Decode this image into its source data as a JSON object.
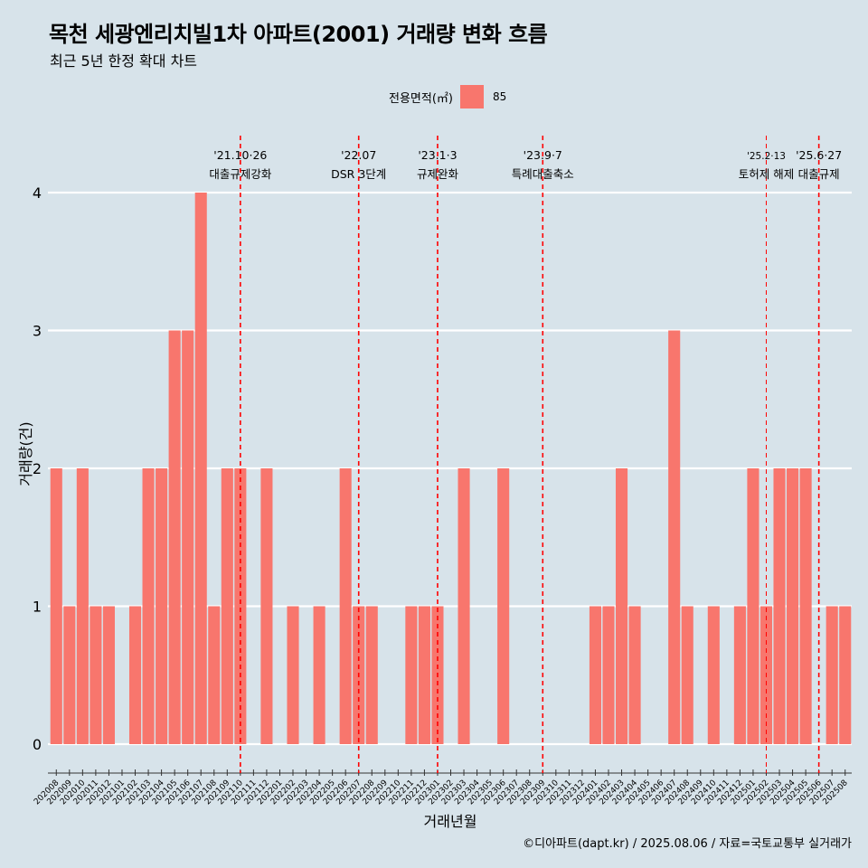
{
  "header": {
    "title": "목천 세광엔리치빌1차 아파트(2001) 거래량 변화 흐름",
    "subtitle": "최근 5년 한정 확대 차트"
  },
  "legend": {
    "title": "전용면적(㎡)",
    "items": [
      {
        "label": "85",
        "color": "#f8766d"
      }
    ]
  },
  "caption": "©디아파트(dapt.kr) / 2025.08.06 / 자료=국토교통부 실거래가",
  "chart_data": {
    "type": "bar",
    "title": "목천 세광엔리치빌1차 아파트(2001) 거래량 변화 흐름",
    "subtitle": "최근 5년 한정 확대 차트",
    "xlabel": "거래년월",
    "ylabel": "거래량(건)",
    "ylim": [
      0,
      4
    ],
    "yticks": [
      0,
      1,
      2,
      3,
      4
    ],
    "grid": "horizontal major lines",
    "legend_position": "top",
    "bar_color": "#f8766d",
    "categories": [
      "202008",
      "202009",
      "202010",
      "202011",
      "202012",
      "202101",
      "202102",
      "202103",
      "202104",
      "202105",
      "202106",
      "202107",
      "202108",
      "202109",
      "202110",
      "202111",
      "202112",
      "202201",
      "202202",
      "202203",
      "202204",
      "202205",
      "202206",
      "202207",
      "202208",
      "202209",
      "202210",
      "202211",
      "202212",
      "202301",
      "202302",
      "202303",
      "202304",
      "202305",
      "202306",
      "202307",
      "202308",
      "202309",
      "202310",
      "202311",
      "202312",
      "202401",
      "202402",
      "202403",
      "202404",
      "202405",
      "202406",
      "202407",
      "202408",
      "202409",
      "202410",
      "202411",
      "202412",
      "202501",
      "202502",
      "202503",
      "202504",
      "202505",
      "202506",
      "202507",
      "202508"
    ],
    "series": [
      {
        "name": "85",
        "values": [
          2,
          1,
          2,
          1,
          1,
          0,
          1,
          2,
          2,
          3,
          3,
          4,
          1,
          2,
          2,
          0,
          2,
          0,
          1,
          0,
          1,
          0,
          2,
          1,
          1,
          0,
          0,
          1,
          1,
          1,
          0,
          2,
          0,
          0,
          2,
          0,
          0,
          0,
          0,
          0,
          0,
          1,
          1,
          2,
          1,
          0,
          0,
          3,
          1,
          0,
          1,
          0,
          1,
          2,
          1,
          2,
          2,
          2,
          0,
          1,
          1
        ]
      }
    ],
    "annotations": [
      {
        "date": "202110",
        "line1": "'21.10·26",
        "line2": "대출규제강화",
        "color": "#ff0000"
      },
      {
        "date": "202207",
        "line1": "'22.07",
        "line2": "DSR 3단계",
        "color": "#ff0000"
      },
      {
        "date": "202301",
        "line1": "'23.1·3",
        "line2": "규제완화",
        "color": "#ff0000"
      },
      {
        "date": "202309",
        "line1": "'23.9·7",
        "line2": "특례대출축소",
        "color": "#ff0000"
      },
      {
        "date": "202502",
        "line1": "'25.2·13",
        "line2": "토허제 해제",
        "color": "#ff0000"
      },
      {
        "date": "202506",
        "line1": "'25.6·27",
        "line2": "대출규제",
        "color": "#ff0000"
      }
    ]
  }
}
